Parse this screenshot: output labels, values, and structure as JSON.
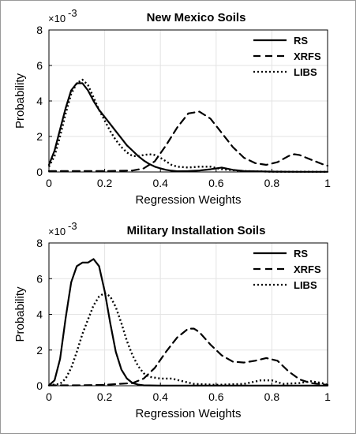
{
  "chart_data": [
    {
      "type": "line",
      "title": "New Mexico Soils",
      "xlabel": "Regression Weights",
      "ylabel": "Probability",
      "y_exponent": "×10^-3",
      "exp_base": "×10",
      "exp_power": "-3",
      "xlim": [
        0,
        1
      ],
      "ylim": [
        0,
        8
      ],
      "xticks": [
        "0",
        "0.2",
        "0.4",
        "0.6",
        "0.8",
        "1"
      ],
      "yticks": [
        "0",
        "2",
        "4",
        "6",
        "8"
      ],
      "grid": true,
      "legend_position": "top-right",
      "series": [
        {
          "name": "RS",
          "style": "solid",
          "x": [
            0,
            0.02,
            0.04,
            0.06,
            0.08,
            0.1,
            0.12,
            0.14,
            0.16,
            0.18,
            0.2,
            0.22,
            0.24,
            0.26,
            0.28,
            0.3,
            0.32,
            0.34,
            0.36,
            0.38,
            0.4,
            0.42,
            0.44,
            0.46,
            0.5,
            0.54,
            0.58,
            0.62,
            0.66,
            0.7,
            0.8,
            0.9,
            1.0
          ],
          "y": [
            0.4,
            1.2,
            2.4,
            3.6,
            4.6,
            5.0,
            5.0,
            4.6,
            4.0,
            3.5,
            3.1,
            2.7,
            2.3,
            1.9,
            1.5,
            1.2,
            0.9,
            0.65,
            0.45,
            0.3,
            0.2,
            0.12,
            0.07,
            0.04,
            0.05,
            0.08,
            0.15,
            0.25,
            0.12,
            0.05,
            0.02,
            0.01,
            0.01
          ]
        },
        {
          "name": "XRFS",
          "style": "dashed",
          "x": [
            0,
            0.1,
            0.2,
            0.3,
            0.34,
            0.38,
            0.42,
            0.46,
            0.5,
            0.54,
            0.58,
            0.62,
            0.66,
            0.7,
            0.74,
            0.78,
            0.82,
            0.86,
            0.88,
            0.9,
            0.94,
            0.98,
            1.0
          ],
          "y": [
            0.05,
            0.05,
            0.05,
            0.08,
            0.2,
            0.6,
            1.5,
            2.5,
            3.3,
            3.4,
            3.0,
            2.2,
            1.4,
            0.8,
            0.5,
            0.4,
            0.55,
            0.9,
            1.0,
            0.95,
            0.7,
            0.45,
            0.35
          ]
        },
        {
          "name": "LIBS",
          "style": "dotted",
          "x": [
            0,
            0.02,
            0.04,
            0.06,
            0.08,
            0.1,
            0.12,
            0.14,
            0.16,
            0.18,
            0.2,
            0.22,
            0.24,
            0.26,
            0.28,
            0.3,
            0.32,
            0.34,
            0.36,
            0.38,
            0.4,
            0.42,
            0.44,
            0.46,
            0.5,
            0.54,
            0.58,
            0.62,
            0.7,
            0.8,
            1.0
          ],
          "y": [
            0.3,
            0.9,
            2.0,
            3.3,
            4.4,
            5.0,
            5.2,
            4.9,
            4.2,
            3.5,
            2.9,
            2.3,
            1.8,
            1.4,
            1.1,
            0.9,
            0.9,
            0.95,
            1.0,
            0.95,
            0.8,
            0.6,
            0.4,
            0.3,
            0.25,
            0.3,
            0.3,
            0.15,
            0.05,
            0.02,
            0.01
          ]
        }
      ]
    },
    {
      "type": "line",
      "title": "Military Installation Soils",
      "xlabel": "Regression Weights",
      "ylabel": "Probability",
      "y_exponent": "×10^-3",
      "exp_base": "×10",
      "exp_power": "-3",
      "xlim": [
        0,
        1
      ],
      "ylim": [
        0,
        8
      ],
      "xticks": [
        "0",
        "0.2",
        "0.4",
        "0.6",
        "0.8",
        "1"
      ],
      "yticks": [
        "0",
        "2",
        "4",
        "6",
        "8"
      ],
      "grid": true,
      "legend_position": "top-right",
      "series": [
        {
          "name": "RS",
          "style": "solid",
          "x": [
            0,
            0.02,
            0.04,
            0.06,
            0.08,
            0.1,
            0.12,
            0.14,
            0.16,
            0.18,
            0.2,
            0.22,
            0.24,
            0.26,
            0.28,
            0.3,
            0.32,
            0.34,
            0.4,
            0.5,
            1.0
          ],
          "y": [
            0.02,
            0.3,
            1.5,
            3.8,
            5.8,
            6.7,
            6.9,
            6.9,
            7.1,
            6.7,
            5.3,
            3.5,
            1.9,
            0.9,
            0.4,
            0.15,
            0.06,
            0.02,
            0.01,
            0.01,
            0.01
          ]
        },
        {
          "name": "XRFS",
          "style": "dashed",
          "x": [
            0,
            0.1,
            0.2,
            0.3,
            0.34,
            0.38,
            0.42,
            0.46,
            0.5,
            0.52,
            0.54,
            0.58,
            0.62,
            0.66,
            0.7,
            0.74,
            0.78,
            0.82,
            0.86,
            0.9,
            0.94,
            0.98,
            1.0
          ],
          "y": [
            0.02,
            0.02,
            0.05,
            0.15,
            0.4,
            1.0,
            1.9,
            2.7,
            3.2,
            3.2,
            3.0,
            2.3,
            1.7,
            1.35,
            1.3,
            1.4,
            1.55,
            1.4,
            0.8,
            0.35,
            0.15,
            0.08,
            0.05
          ]
        },
        {
          "name": "LIBS",
          "style": "dotted",
          "x": [
            0,
            0.04,
            0.06,
            0.08,
            0.1,
            0.12,
            0.14,
            0.16,
            0.18,
            0.2,
            0.22,
            0.24,
            0.26,
            0.28,
            0.3,
            0.32,
            0.34,
            0.36,
            0.4,
            0.44,
            0.48,
            0.52,
            0.6,
            0.7,
            0.76,
            0.8,
            0.84,
            0.9,
            0.94,
            0.98,
            1.0
          ],
          "y": [
            0.02,
            0.1,
            0.4,
            1.0,
            1.9,
            2.9,
            3.7,
            4.5,
            5.0,
            5.2,
            5.0,
            4.4,
            3.5,
            2.5,
            1.7,
            1.1,
            0.7,
            0.5,
            0.4,
            0.4,
            0.25,
            0.1,
            0.05,
            0.1,
            0.3,
            0.3,
            0.1,
            0.15,
            0.25,
            0.15,
            0.05
          ]
        }
      ]
    }
  ]
}
